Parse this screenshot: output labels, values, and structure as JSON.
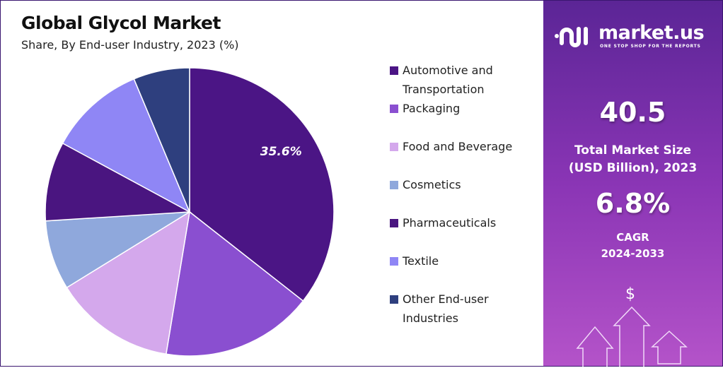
{
  "chart_data": {
    "type": "pie",
    "title": "Global Glycol Market",
    "subtitle": "Share, By End-user Industry, 2023 (%)",
    "categories": [
      "Automotive and Transportation",
      "Packaging",
      "Food and Beverage",
      "Cosmetics",
      "Pharmaceuticals",
      "Textile",
      "Other End-user Industries"
    ],
    "legend_lines": [
      [
        "Automotive and",
        "Transportation"
      ],
      [
        "Packaging"
      ],
      [
        "Food and Beverage"
      ],
      [
        "Cosmetics"
      ],
      [
        "Pharmaceuticals"
      ],
      [
        "Textile"
      ],
      [
        "Other End-user",
        "Industries"
      ]
    ],
    "values": [
      35.6,
      17.0,
      13.6,
      7.8,
      8.9,
      10.8,
      6.3
    ],
    "colors": [
      "#4b1585",
      "#8a4fd0",
      "#d4a8ec",
      "#8fa8dc",
      "#4a1580",
      "#8f86f5",
      "#2e3f7e"
    ],
    "data_labels": [
      "35.6%",
      "",
      "",
      "",
      "",
      "",
      ""
    ],
    "legend_position": "right"
  },
  "panel": {
    "brand": "market.us",
    "tagline": "ONE STOP SHOP FOR THE REPORTS",
    "market_size": "40.5",
    "market_size_label": [
      "Total Market Size",
      "(USD Billion), 2023"
    ],
    "cagr": "6.8%",
    "cagr_label": [
      "CAGR",
      "2024-2033"
    ],
    "dollar_icon": "$"
  }
}
